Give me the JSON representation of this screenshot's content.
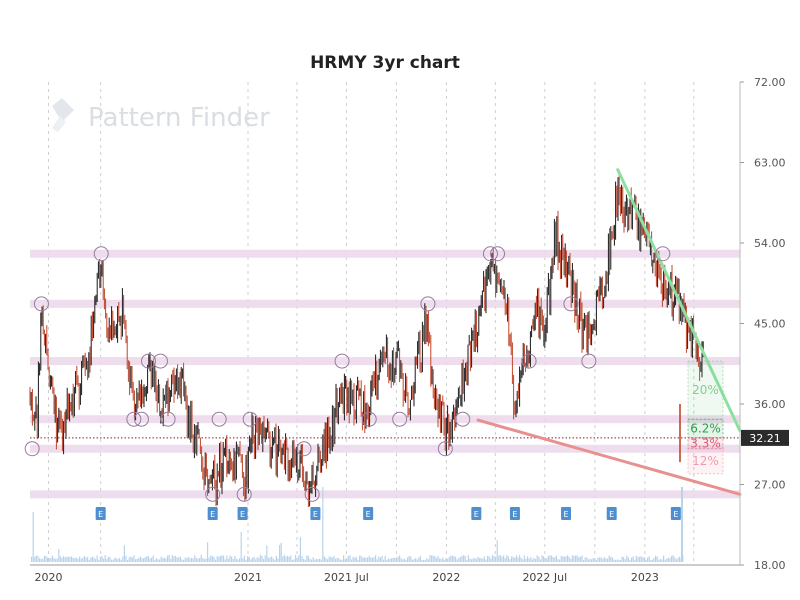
{
  "chart_data": {
    "type": "line",
    "title": "HRMY 3yr chart",
    "watermark": "Pattern Finder",
    "y_axis": {
      "side": "right",
      "ylim": [
        18,
        72
      ],
      "ticks": [
        "72.00",
        "63.00",
        "54.00",
        "45.00",
        "36.00",
        "27.00",
        "18.00"
      ]
    },
    "x_axis": {
      "range": [
        "2019-11-27",
        "2023-06-25"
      ],
      "ticks": [
        {
          "date": "2019-12-31",
          "label": "2020"
        },
        {
          "date": "2021-01-01",
          "label": "2021"
        },
        {
          "date": "2021-07-01",
          "label": "2021 Jul"
        },
        {
          "date": "2022-01-01",
          "label": "2022"
        },
        {
          "date": "2022-07-01",
          "label": "2022 Jul"
        },
        {
          "date": "2023-01-01",
          "label": "2023"
        }
      ]
    },
    "grid": "vertical dashed",
    "current_price": {
      "label": "32.21",
      "value": 32.21
    },
    "support_resistance_levels": [
      52.8,
      47.2,
      40.8,
      34.3,
      31.0,
      25.9
    ],
    "trendlines": [
      {
        "name": "resistance",
        "color": "#8ee0a0",
        "from": {
          "date": "2022-11-12",
          "value": 62.2
        },
        "to": {
          "date": "2023-06-25",
          "value": 33.0
        }
      },
      {
        "name": "support",
        "color": "#e89090",
        "from": {
          "date": "2022-02-28",
          "value": 34.2
        },
        "to": {
          "date": "2023-06-25",
          "value": 25.9
        }
      }
    ],
    "target_boxes": [
      {
        "label": "20%",
        "color": "#7ed08e",
        "from": 34.3,
        "to": 40.8
      },
      {
        "label": "6.2%",
        "color": "#2e9e4e",
        "from": 32.21,
        "to": 34.3
      },
      {
        "label": "3.3%",
        "color": "#e05a76",
        "from": 31.0,
        "to": 32.21
      },
      {
        "label": "12%",
        "color": "#f09ab0",
        "from": 28.2,
        "to": 31.0
      }
    ],
    "earnings_markers": {
      "label": "E",
      "dates": [
        "2020-04-05",
        "2020-10-28",
        "2020-12-22",
        "2021-05-05",
        "2021-08-10",
        "2022-02-25",
        "2022-05-07",
        "2022-08-09",
        "2022-11-01",
        "2023-02-27"
      ]
    },
    "pattern_points": [
      {
        "date": "2019-12-01",
        "value": 31.0
      },
      {
        "date": "2019-12-18",
        "value": 47.2
      },
      {
        "date": "2020-04-06",
        "value": 52.8
      },
      {
        "date": "2020-06-05",
        "value": 34.3
      },
      {
        "date": "2020-06-19",
        "value": 34.3
      },
      {
        "date": "2020-07-02",
        "value": 40.8
      },
      {
        "date": "2020-07-24",
        "value": 40.8
      },
      {
        "date": "2020-08-07",
        "value": 34.3
      },
      {
        "date": "2020-10-28",
        "value": 25.9
      },
      {
        "date": "2020-11-09",
        "value": 34.3
      },
      {
        "date": "2020-12-25",
        "value": 25.9
      },
      {
        "date": "2021-01-05",
        "value": 34.3
      },
      {
        "date": "2021-04-14",
        "value": 31.0
      },
      {
        "date": "2021-04-29",
        "value": 25.9
      },
      {
        "date": "2021-06-23",
        "value": 40.8
      },
      {
        "date": "2021-08-12",
        "value": 34.3
      },
      {
        "date": "2021-10-07",
        "value": 34.3
      },
      {
        "date": "2021-11-28",
        "value": 47.2
      },
      {
        "date": "2021-12-30",
        "value": 31.0
      },
      {
        "date": "2022-01-31",
        "value": 34.3
      },
      {
        "date": "2022-03-23",
        "value": 52.8
      },
      {
        "date": "2022-04-05",
        "value": 52.8
      },
      {
        "date": "2022-06-02",
        "value": 40.8
      },
      {
        "date": "2022-08-18",
        "value": 47.2
      },
      {
        "date": "2022-09-20",
        "value": 40.8
      },
      {
        "date": "2023-02-03",
        "value": 52.8
      }
    ],
    "price_path": [
      {
        "date": "2019-11-27",
        "value": 37
      },
      {
        "date": "2019-12-10",
        "value": 34
      },
      {
        "date": "2019-12-18",
        "value": 46
      },
      {
        "date": "2019-12-31",
        "value": 40
      },
      {
        "date": "2020-01-20",
        "value": 32
      },
      {
        "date": "2020-02-15",
        "value": 37
      },
      {
        "date": "2020-03-12",
        "value": 41
      },
      {
        "date": "2020-04-05",
        "value": 51
      },
      {
        "date": "2020-04-20",
        "value": 44
      },
      {
        "date": "2020-05-15",
        "value": 46
      },
      {
        "date": "2020-06-05",
        "value": 35
      },
      {
        "date": "2020-07-05",
        "value": 39
      },
      {
        "date": "2020-07-28",
        "value": 36
      },
      {
        "date": "2020-08-25",
        "value": 40
      },
      {
        "date": "2020-09-20",
        "value": 33
      },
      {
        "date": "2020-10-28",
        "value": 27
      },
      {
        "date": "2020-11-20",
        "value": 30
      },
      {
        "date": "2020-12-15",
        "value": 29
      },
      {
        "date": "2020-12-25",
        "value": 27
      },
      {
        "date": "2021-01-10",
        "value": 33
      },
      {
        "date": "2021-02-15",
        "value": 31
      },
      {
        "date": "2021-03-10",
        "value": 30
      },
      {
        "date": "2021-04-05",
        "value": 29.5
      },
      {
        "date": "2021-04-25",
        "value": 27
      },
      {
        "date": "2021-05-20",
        "value": 31
      },
      {
        "date": "2021-06-20",
        "value": 37
      },
      {
        "date": "2021-07-20",
        "value": 36
      },
      {
        "date": "2021-08-12",
        "value": 36
      },
      {
        "date": "2021-09-10",
        "value": 42
      },
      {
        "date": "2021-10-05",
        "value": 40
      },
      {
        "date": "2021-10-25",
        "value": 36
      },
      {
        "date": "2021-11-25",
        "value": 45
      },
      {
        "date": "2021-12-10",
        "value": 37
      },
      {
        "date": "2021-12-30",
        "value": 33
      },
      {
        "date": "2022-01-25",
        "value": 37
      },
      {
        "date": "2022-02-20",
        "value": 43
      },
      {
        "date": "2022-03-20",
        "value": 51
      },
      {
        "date": "2022-04-10",
        "value": 51
      },
      {
        "date": "2022-04-25",
        "value": 46
      },
      {
        "date": "2022-05-08",
        "value": 34
      }
    ],
    "price_path_part2": [
      {
        "date": "2022-05-25",
        "value": 41
      },
      {
        "date": "2022-06-15",
        "value": 47
      },
      {
        "date": "2022-06-30",
        "value": 43
      },
      {
        "date": "2022-07-20",
        "value": 55
      },
      {
        "date": "2022-08-09",
        "value": 51
      },
      {
        "date": "2022-08-25",
        "value": 48
      },
      {
        "date": "2022-09-15",
        "value": 43
      },
      {
        "date": "2022-10-10",
        "value": 48
      },
      {
        "date": "2022-10-25",
        "value": 52
      },
      {
        "date": "2022-11-10",
        "value": 59
      },
      {
        "date": "2022-12-05",
        "value": 57
      },
      {
        "date": "2022-12-25",
        "value": 55
      },
      {
        "date": "2023-01-15",
        "value": 53
      },
      {
        "date": "2023-02-05",
        "value": 49
      },
      {
        "date": "2023-02-27",
        "value": 48
      },
      {
        "date": "2023-03-20",
        "value": 44
      },
      {
        "date": "2023-04-05",
        "value": 42
      },
      {
        "date": "2023-04-20",
        "value": 41
      },
      {
        "date": "2023-05-02",
        "value": 32.21
      }
    ]
  }
}
